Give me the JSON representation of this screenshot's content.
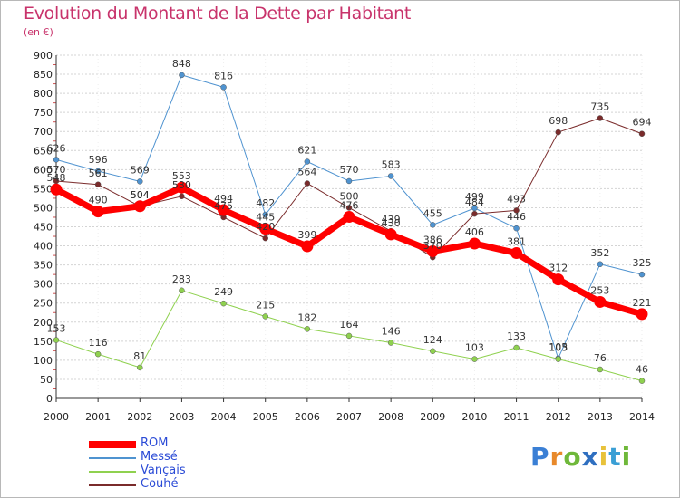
{
  "header": {
    "title": "Evolution du Montant de la Dette par Habitant",
    "subtitle": "(en €)"
  },
  "logo": {
    "text": "Proxiti",
    "colors": [
      "#3a7fd5",
      "#e8892a",
      "#6fb83a",
      "#2f6fc0",
      "#e8c23a",
      "#3a9fd5",
      "#6fb83a"
    ]
  },
  "chart_data": {
    "type": "line",
    "title": "Evolution du Montant de la Dette par Habitant",
    "subtitle": "(en €)",
    "xlabel": "",
    "ylabel": "",
    "x": [
      "2000",
      "2001",
      "2002",
      "2003",
      "2004",
      "2005",
      "2006",
      "2007",
      "2008",
      "2009",
      "2010",
      "2011",
      "2012",
      "2013",
      "2014"
    ],
    "yticks": [
      "0",
      "50",
      "100",
      "150",
      "200",
      "250",
      "300",
      "350",
      "400",
      "450",
      "500",
      "550",
      "600",
      "650",
      "700",
      "750",
      "800",
      "850",
      "900"
    ],
    "ylim": [
      0,
      900
    ],
    "grid": "horizontal-dashed",
    "legend_position": "bottom-left",
    "series": [
      {
        "name": "ROM",
        "color": "#ff0000",
        "values": [
          548,
          490,
          504,
          553,
          494,
          445,
          399,
          476,
          430,
          386,
          406,
          381,
          312,
          253,
          221
        ]
      },
      {
        "name": "Messé",
        "color": "#4f93d0",
        "values": [
          626,
          596,
          569,
          848,
          816,
          482,
          621,
          570,
          583,
          455,
          499,
          446,
          105,
          352,
          325
        ]
      },
      {
        "name": "Vançais",
        "color": "#8fd14f",
        "values": [
          153,
          116,
          81,
          283,
          249,
          215,
          182,
          164,
          146,
          124,
          103,
          133,
          103,
          76,
          46
        ]
      },
      {
        "name": "Couhé",
        "color": "#7a2b2b",
        "values": [
          570,
          561,
          504,
          530,
          475,
          420,
          564,
          500,
          439,
          370,
          484,
          493,
          698,
          735,
          694
        ]
      }
    ]
  }
}
